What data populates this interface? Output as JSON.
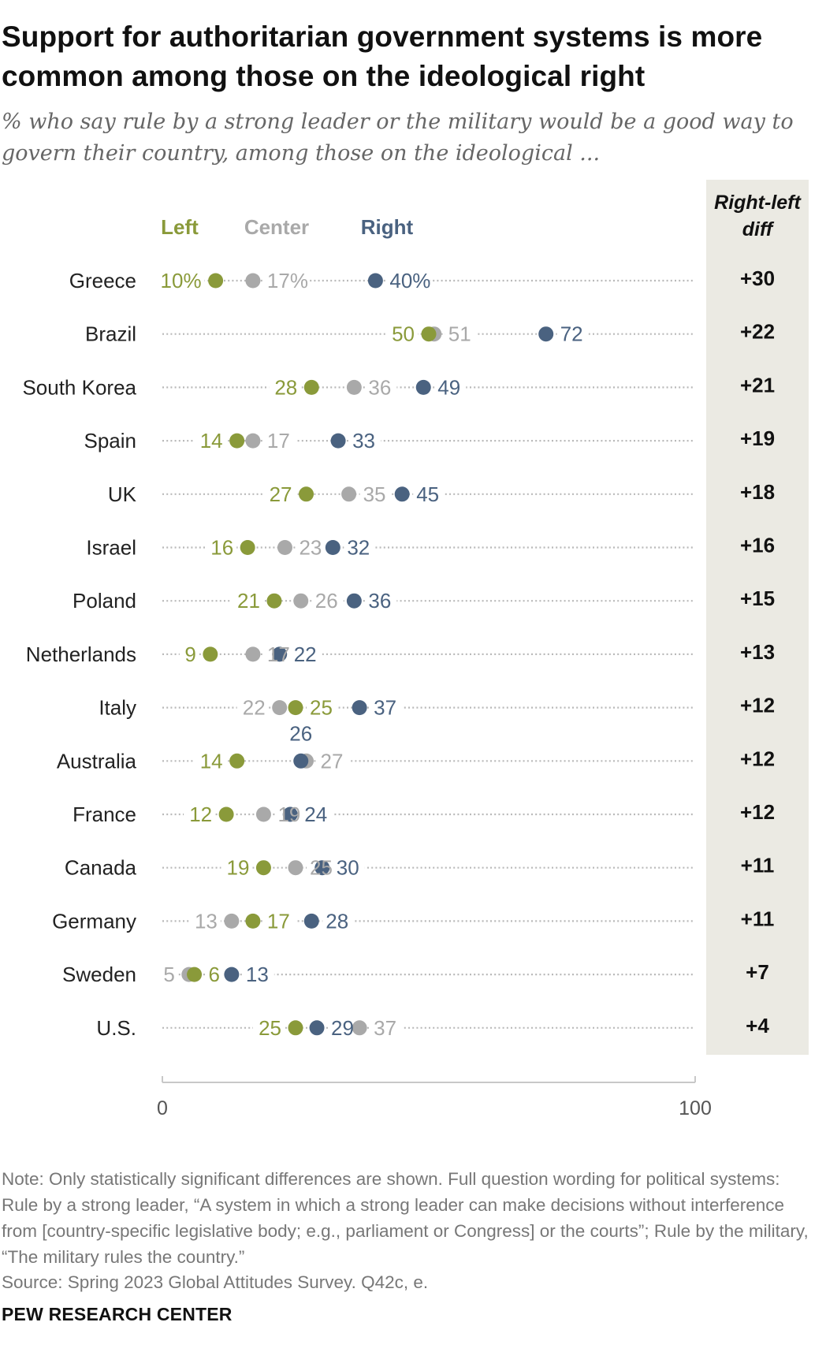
{
  "title": "Support for authoritarian government systems is more common among those on the ideological right",
  "subtitle": "% who say rule by a strong leader or the military would be a good way to govern their country, among those on the ideological ...",
  "note": "Note: Only statistically significant differences are shown. Full question wording for political systems: Rule by a strong leader, “A system in which a strong leader can make decisions without interference from [country-specific legislative body; e.g., parliament or Congress] or the courts”; Rule by the military, “The military rules the country.”",
  "source": "Source: Spring 2023 Global Attitudes Survey.  Q42c, e.",
  "logo": "PEW RESEARCH CENTER",
  "colors": {
    "left": "#8a9a3a",
    "center": "#a9a9a9",
    "right": "#4a6280",
    "diff_bg": "#ebeae3",
    "dots": "#b9b9b9"
  },
  "chart_data": {
    "type": "dot",
    "diff_header": [
      "Right-left",
      "diff"
    ],
    "xlim": [
      0,
      100
    ],
    "x_ticks": [
      "0",
      "100"
    ],
    "series": [
      {
        "name": "Left",
        "key": "left"
      },
      {
        "name": "Center",
        "key": "center"
      },
      {
        "name": "Right",
        "key": "right"
      }
    ],
    "rows": [
      {
        "country": "Greece",
        "left": 10,
        "center": 17,
        "right": 40,
        "diff": "+30",
        "labels": {
          "left": "10%",
          "center": "17%",
          "right": "40%"
        }
      },
      {
        "country": "Brazil",
        "left": 50,
        "center": 51,
        "right": 72,
        "diff": "+22",
        "labels": {
          "left": "50",
          "center": "51",
          "right": "72"
        }
      },
      {
        "country": "South Korea",
        "left": 28,
        "center": 36,
        "right": 49,
        "diff": "+21",
        "labels": {
          "left": "28",
          "center": "36",
          "right": "49"
        }
      },
      {
        "country": "Spain",
        "left": 14,
        "center": 17,
        "right": 33,
        "diff": "+19",
        "labels": {
          "left": "14",
          "center": "17",
          "right": "33"
        }
      },
      {
        "country": "UK",
        "left": 27,
        "center": 35,
        "right": 45,
        "diff": "+18",
        "labels": {
          "left": "27",
          "center": "35",
          "right": "45"
        }
      },
      {
        "country": "Israel",
        "left": 16,
        "center": 23,
        "right": 32,
        "diff": "+16",
        "labels": {
          "left": "16",
          "center": "23",
          "right": "32"
        }
      },
      {
        "country": "Poland",
        "left": 21,
        "center": 26,
        "right": 36,
        "diff": "+15",
        "labels": {
          "left": "21",
          "center": "26",
          "right": "36"
        }
      },
      {
        "country": "Netherlands",
        "left": 9,
        "center": 17,
        "right": 22,
        "diff": "+13",
        "labels": {
          "left": "9",
          "center": "17",
          "right": "22"
        }
      },
      {
        "country": "Italy",
        "left": 25,
        "center": 22,
        "right": 37,
        "diff": "+12",
        "labels": {
          "left": "25",
          "center": "22",
          "right": "37"
        }
      },
      {
        "country": "Australia",
        "left": 14,
        "center": 27,
        "right": 26,
        "diff": "+12",
        "labels": {
          "left": "14",
          "center": "27",
          "right": "26"
        }
      },
      {
        "country": "France",
        "left": 12,
        "center": 19,
        "right": 24,
        "diff": "+12",
        "labels": {
          "left": "12",
          "center": "19",
          "right": "24"
        }
      },
      {
        "country": "Canada",
        "left": 19,
        "center": 25,
        "right": 30,
        "diff": "+11",
        "labels": {
          "left": "19",
          "center": "25",
          "right": "30"
        }
      },
      {
        "country": "Germany",
        "left": 17,
        "center": 13,
        "right": 28,
        "diff": "+11",
        "labels": {
          "left": "17",
          "center": "13",
          "right": "28"
        }
      },
      {
        "country": "Sweden",
        "left": 6,
        "center": 5,
        "right": 13,
        "diff": "+7",
        "labels": {
          "left": "6",
          "center": "5",
          "right": "13"
        }
      },
      {
        "country": "U.S.",
        "left": 25,
        "center": 37,
        "right": 29,
        "diff": "+4",
        "labels": {
          "left": "25",
          "center": "37",
          "right": "29"
        }
      }
    ]
  }
}
